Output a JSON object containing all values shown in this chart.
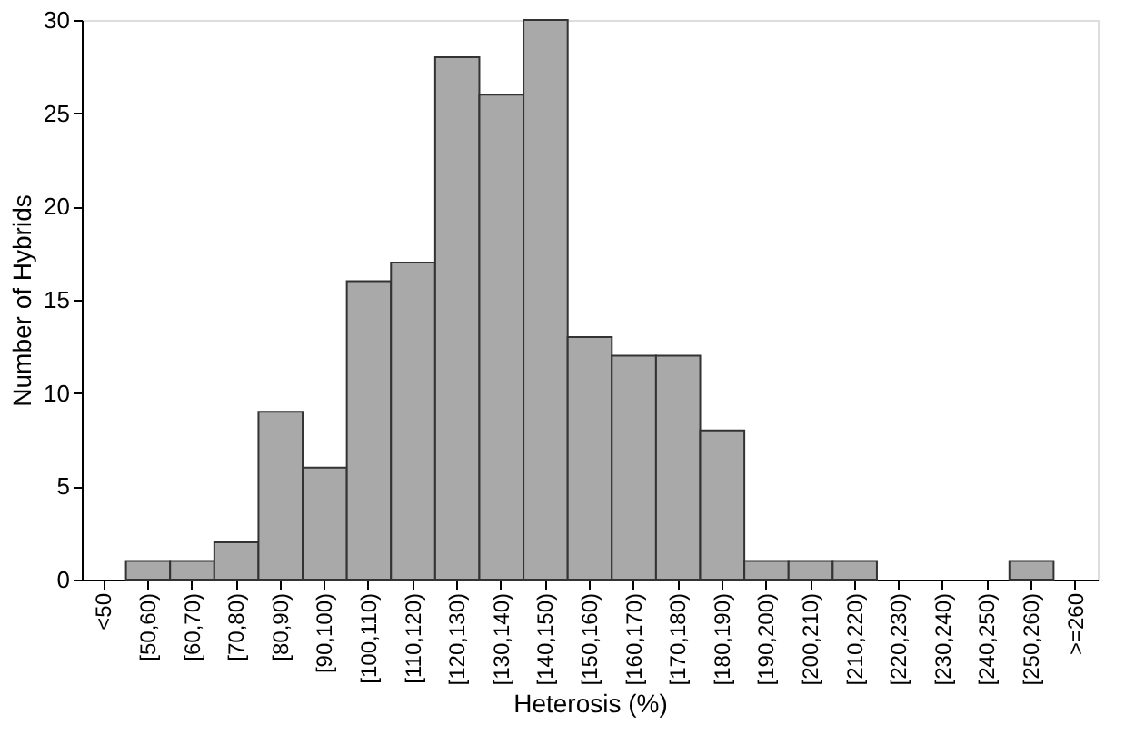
{
  "chart_data": {
    "type": "bar",
    "categories": [
      "<50",
      "[50,60)",
      "[60,70)",
      "[70,80)",
      "[80,90)",
      "[90,100)",
      "[100,110)",
      "[110,120)",
      "[120,130)",
      "[130,140)",
      "[140,150)",
      "[150,160)",
      "[160,170)",
      "[170,180)",
      "[180,190)",
      "[190,200)",
      "[200,210)",
      "[210,220)",
      "[220,230)",
      "[230,240)",
      "[240,250)",
      "[250,260)",
      ">=260"
    ],
    "values": [
      0,
      1,
      1,
      2,
      9,
      6,
      16,
      17,
      28,
      26,
      30,
      13,
      12,
      12,
      8,
      1,
      1,
      1,
      0,
      0,
      0,
      1,
      0
    ],
    "color": "#a9a9a9",
    "xlabel": "Heterosis (%)",
    "ylabel": "Number of Hybrids",
    "ylim": [
      0,
      30
    ],
    "yticks": [
      0,
      5,
      10,
      15,
      20,
      25,
      30
    ],
    "grid": false
  }
}
